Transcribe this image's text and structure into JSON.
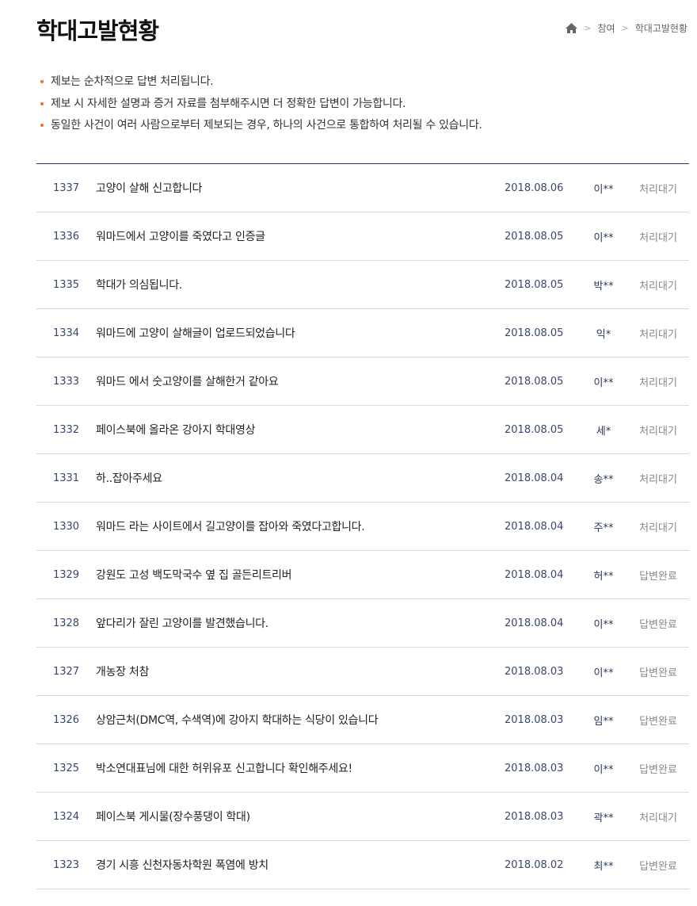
{
  "header": {
    "title": "학대고발현황",
    "breadcrumb": [
      "참여",
      "학대고발현황"
    ]
  },
  "notes": [
    "제보는 순차적으로 답변 처리됩니다.",
    "제보 시 자세한 설명과 증거 자료를 첨부해주시면 더 정확한 답변이 가능합니다.",
    "동일한 사건이 여러 사람으로부터 제보되는 경우, 하나의 사건으로 통합하여 처리될 수 있습니다."
  ],
  "colors": {
    "bullet": "#e8731c",
    "accent": "#2b3560"
  },
  "rows": [
    {
      "num": "1337",
      "subject": "고양이 살해 신고합니다",
      "date": "2018.08.06",
      "writer": "이**",
      "status": "처리대기"
    },
    {
      "num": "1336",
      "subject": "워마드에서 고양이를 죽였다고 인증글",
      "date": "2018.08.05",
      "writer": "이**",
      "status": "처리대기"
    },
    {
      "num": "1335",
      "subject": "학대가 의심됩니다.",
      "date": "2018.08.05",
      "writer": "박**",
      "status": "처리대기"
    },
    {
      "num": "1334",
      "subject": "워마드에 고양이 살해글이 업로드되었습니다",
      "date": "2018.08.05",
      "writer": "익*",
      "status": "처리대기"
    },
    {
      "num": "1333",
      "subject": "워마드 에서 숫고양이를 살해한거 같아요",
      "date": "2018.08.05",
      "writer": "이**",
      "status": "처리대기"
    },
    {
      "num": "1332",
      "subject": "페이스북에 올라온 강아지 학대영상",
      "date": "2018.08.05",
      "writer": "세*",
      "status": "처리대기"
    },
    {
      "num": "1331",
      "subject": "하..잡아주세요",
      "date": "2018.08.04",
      "writer": "송**",
      "status": "처리대기"
    },
    {
      "num": "1330",
      "subject": "워마드 라는 사이트에서 길고양이를 잡아와 죽였다고합니다.",
      "date": "2018.08.04",
      "writer": "주**",
      "status": "처리대기"
    },
    {
      "num": "1329",
      "subject": "강원도 고성 백도막국수 옆 집 골든리트리버",
      "date": "2018.08.04",
      "writer": "허**",
      "status": "답변완료"
    },
    {
      "num": "1328",
      "subject": "앞다리가 잘린 고양이를 발견했습니다.",
      "date": "2018.08.04",
      "writer": "이**",
      "status": "답변완료"
    },
    {
      "num": "1327",
      "subject": "개농장 처참",
      "date": "2018.08.03",
      "writer": "이**",
      "status": "답변완료"
    },
    {
      "num": "1326",
      "subject": "상암근처(DMC역, 수색역)에 강아지 학대하는 식당이 있습니다",
      "date": "2018.08.03",
      "writer": "임**",
      "status": "답변완료"
    },
    {
      "num": "1325",
      "subject": "박소연대표님에 대한 허위유포 신고합니다 확인해주세요!",
      "date": "2018.08.03",
      "writer": "이**",
      "status": "답변완료"
    },
    {
      "num": "1324",
      "subject": "페이스북 게시물(장수풍댕이 학대)",
      "date": "2018.08.03",
      "writer": "곽**",
      "status": "처리대기"
    },
    {
      "num": "1323",
      "subject": "경기 시흥 신천자동차학원 폭염에 방치",
      "date": "2018.08.02",
      "writer": "최**",
      "status": "답변완료"
    }
  ]
}
